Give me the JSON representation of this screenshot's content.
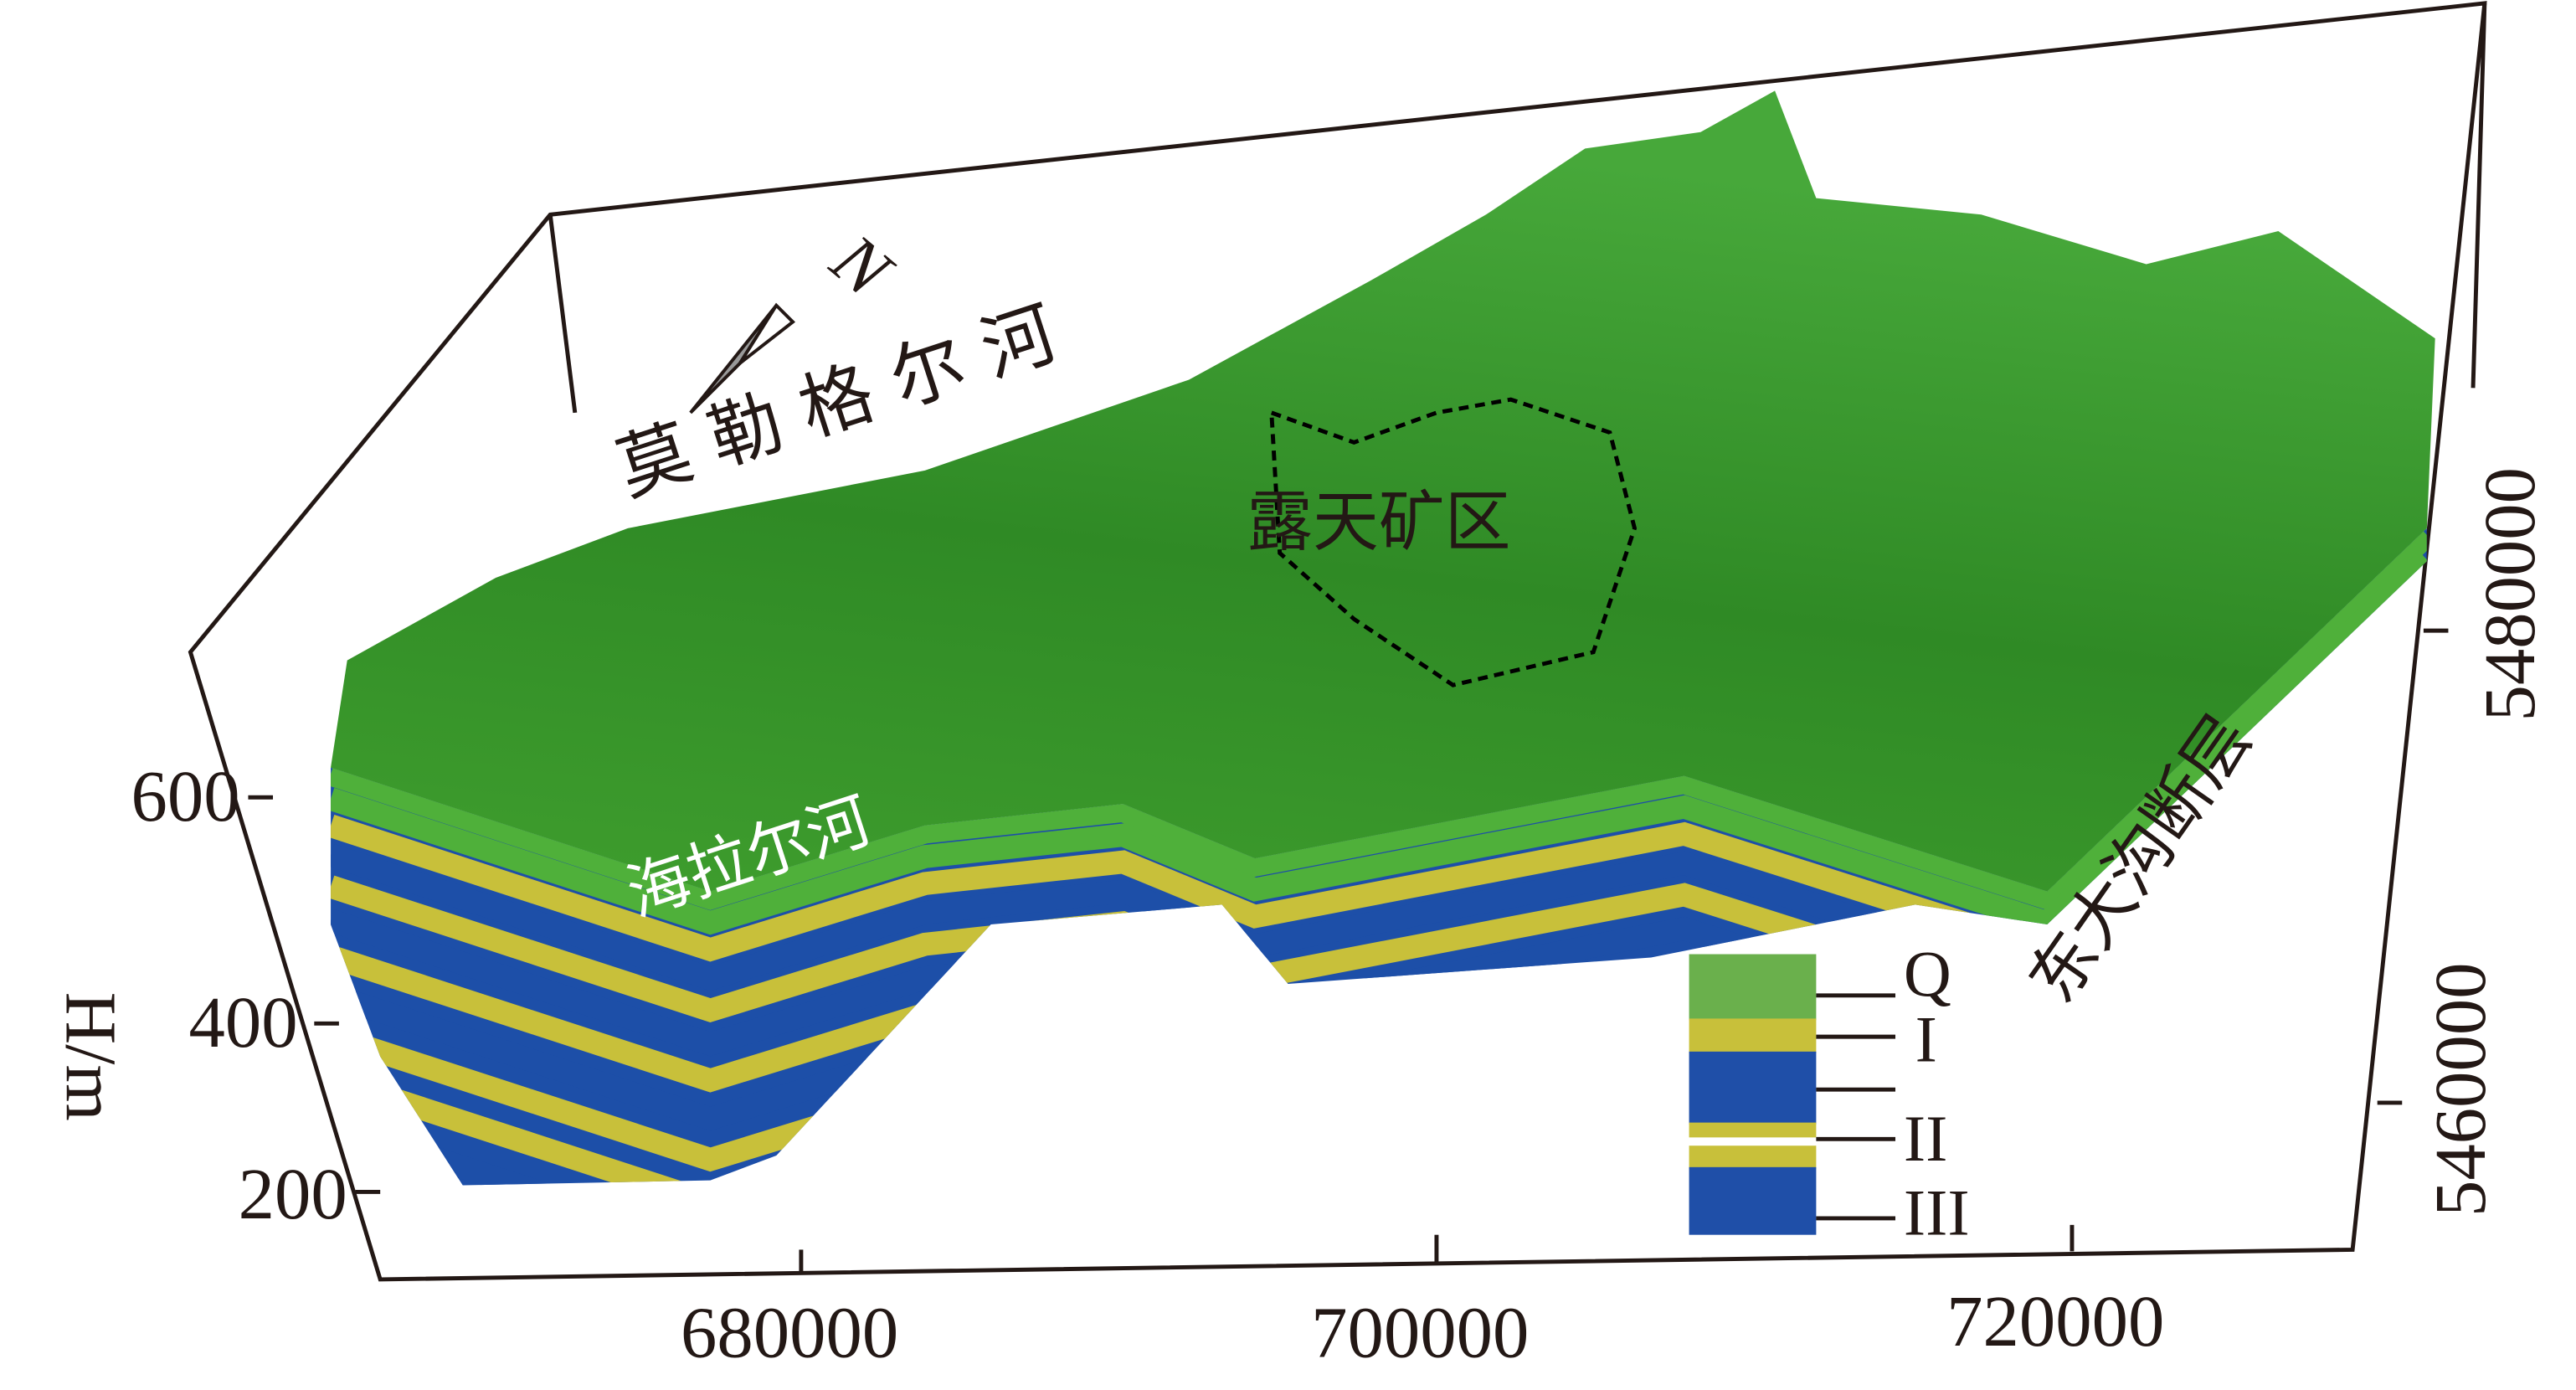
{
  "labels": {
    "north": "N",
    "river_north": "莫 勒 格 尔 河",
    "river_south": "海拉尔河",
    "mine": "露天矿区",
    "fault": "东大沟断层"
  },
  "axes": {
    "z_label": "H/m",
    "z_ticks": [
      "600",
      "400",
      "200"
    ],
    "x_ticks": [
      "680000",
      "700000",
      "720000"
    ],
    "y_ticks": [
      "5480000",
      "5460000"
    ]
  },
  "legend": [
    "Q",
    "I",
    "II",
    "III"
  ]
}
